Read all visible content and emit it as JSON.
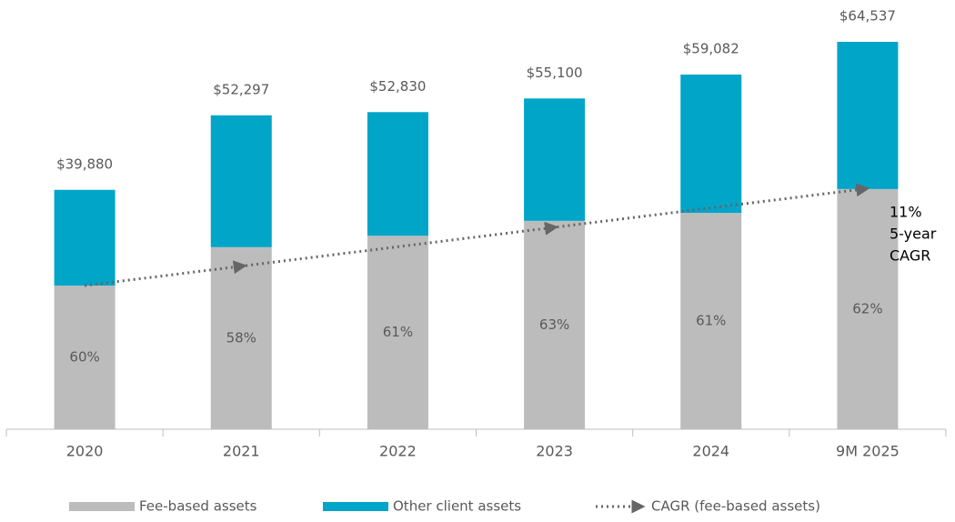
{
  "chart_data": {
    "type": "stacked_bar",
    "categories": [
      "2020",
      "2021",
      "2022",
      "2023",
      "2024",
      "9M 2025"
    ],
    "series": [
      {
        "name": "Fee-based assets",
        "color": "#bcbcbc",
        "values": [
          23928,
          30332,
          32226,
          34713,
          36040,
          40013
        ],
        "value_labels": null
      },
      {
        "name": "Other client assets",
        "color": "#00a5c8",
        "values": [
          15952,
          21965,
          20604,
          20387,
          23042,
          24524
        ]
      }
    ],
    "share_labels": [
      "60%",
      "58%",
      "61%",
      "63%",
      "61%",
      "62%"
    ],
    "totals": [
      39880,
      52297,
      52830,
      55100,
      59082,
      64537
    ],
    "total_labels": [
      "$39,880",
      "$52,297",
      "$52,830",
      "$55,100",
      "$59,082",
      "$64,537"
    ],
    "trend": {
      "name": "CAGR (fee-based assets)",
      "color": "#666666"
    },
    "annotation": [
      "11%",
      "5-year",
      "CAGR"
    ]
  }
}
